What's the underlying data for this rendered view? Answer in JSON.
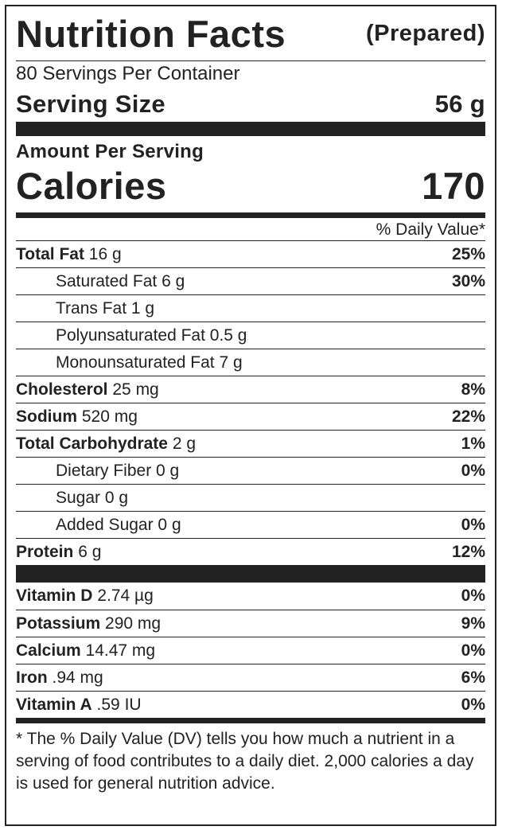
{
  "header": {
    "title": "Nutrition Facts",
    "subtitle": "(Prepared)"
  },
  "servings": {
    "per_container": "80 Servings Per Container",
    "size_label": "Serving Size",
    "size_value": "56 g"
  },
  "calories": {
    "amount_label": "Amount Per Serving",
    "label": "Calories",
    "value": "170"
  },
  "dv_header": "% Daily Value*",
  "nutrients": [
    {
      "name": "Total Fat",
      "amount": "16 g",
      "dv": "25%"
    },
    {
      "name": "Saturated Fat 6 g",
      "amount": "",
      "dv": "30%"
    },
    {
      "name": "Trans Fat 1 g",
      "amount": "",
      "dv": ""
    },
    {
      "name": "Polyunsaturated Fat 0.5 g",
      "amount": "",
      "dv": ""
    },
    {
      "name": "Monounsaturated Fat 7 g",
      "amount": "",
      "dv": ""
    },
    {
      "name": "Cholesterol",
      "amount": "25 mg",
      "dv": "8%"
    },
    {
      "name": "Sodium",
      "amount": "520 mg",
      "dv": "22%"
    },
    {
      "name": "Total Carbohydrate",
      "amount": "2 g",
      "dv": "1%"
    },
    {
      "name": "Dietary Fiber 0 g",
      "amount": "",
      "dv": "0%"
    },
    {
      "name": "Sugar 0 g",
      "amount": "",
      "dv": ""
    },
    {
      "name": "Added Sugar 0 g",
      "amount": "",
      "dv": "0%"
    },
    {
      "name": "Protein",
      "amount": "6 g",
      "dv": "12%"
    }
  ],
  "vitamins": [
    {
      "name": "Vitamin D",
      "amount": "2.74 µg",
      "dv": "0%"
    },
    {
      "name": "Potassium",
      "amount": "290 mg",
      "dv": "9%"
    },
    {
      "name": "Calcium",
      "amount": "14.47 mg",
      "dv": "0%"
    },
    {
      "name": "Iron",
      "amount": ".94 mg",
      "dv": "6%"
    },
    {
      "name": "Vitamin A",
      "amount": ".59 IU",
      "dv": "0%"
    }
  ],
  "footnote": "* The % Daily Value (DV) tells you how much a nutrient in a serving of food contributes to a daily diet. 2,000 calories a day is used for general nutrition advice."
}
